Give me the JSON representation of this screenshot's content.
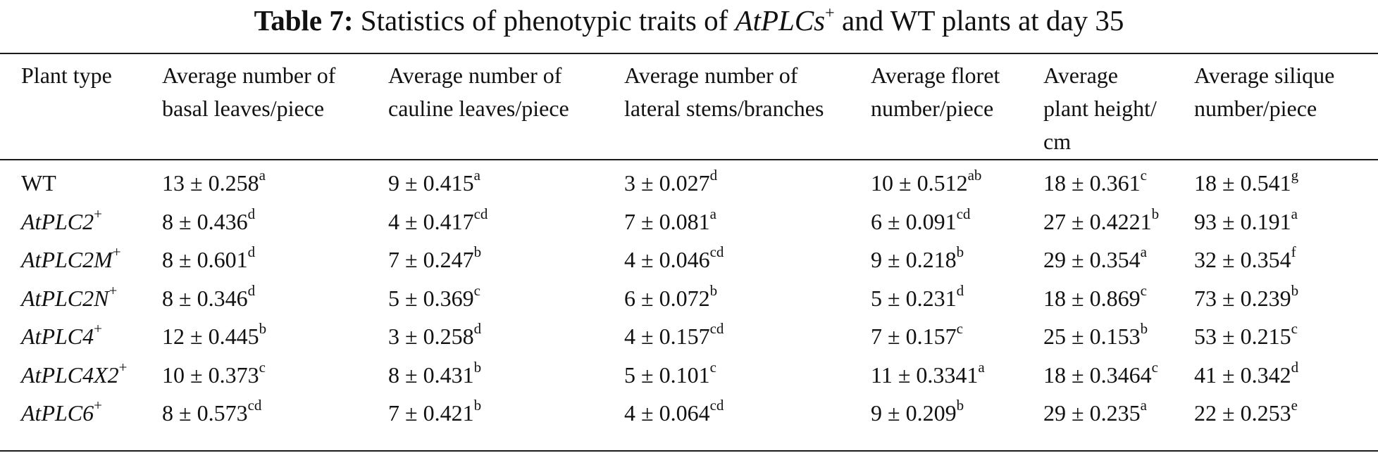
{
  "title": {
    "label": "Table 7:",
    "text": "Statistics of phenotypic traits of",
    "italic": "AtPLCs",
    "sup": "+",
    "suffix": "and WT plants at day 35"
  },
  "headers": [
    "Plant type",
    "Average number of\nbasal leaves/piece",
    "Average number of\ncauline leaves/piece",
    "Average number of\nlateral stems/branches",
    "Average floret\nnumber/piece",
    "Average\nplant height/\ncm",
    "Average silique\nnumber/piece"
  ],
  "rows": [
    {
      "plant": {
        "name": "WT",
        "sup": ""
      },
      "cells": [
        {
          "v": "13 ± 0.258",
          "s": "a"
        },
        {
          "v": "9 ± 0.415",
          "s": "a"
        },
        {
          "v": "3 ± 0.027",
          "s": "d"
        },
        {
          "v": "10 ± 0.512",
          "s": "ab"
        },
        {
          "v": "18 ± 0.361",
          "s": "c"
        },
        {
          "v": "18 ± 0.541",
          "s": "g"
        }
      ]
    },
    {
      "plant": {
        "name": "AtPLC2",
        "sup": "+"
      },
      "cells": [
        {
          "v": "8 ± 0.436",
          "s": "d"
        },
        {
          "v": "4 ± 0.417",
          "s": "cd"
        },
        {
          "v": "7 ± 0.081",
          "s": "a"
        },
        {
          "v": "6 ± 0.091",
          "s": "cd"
        },
        {
          "v": "27 ± 0.4221",
          "s": "b"
        },
        {
          "v": "93 ± 0.191",
          "s": "a"
        }
      ]
    },
    {
      "plant": {
        "name": "AtPLC2M",
        "sup": "+"
      },
      "cells": [
        {
          "v": "8 ± 0.601",
          "s": "d"
        },
        {
          "v": "7 ± 0.247",
          "s": "b"
        },
        {
          "v": "4 ± 0.046",
          "s": "cd"
        },
        {
          "v": "9 ± 0.218",
          "s": "b"
        },
        {
          "v": "29 ± 0.354",
          "s": "a"
        },
        {
          "v": "32 ± 0.354",
          "s": "f"
        }
      ]
    },
    {
      "plant": {
        "name": "AtPLC2N",
        "sup": "+"
      },
      "cells": [
        {
          "v": "8 ± 0.346",
          "s": "d"
        },
        {
          "v": "5 ± 0.369",
          "s": "c"
        },
        {
          "v": "6 ± 0.072",
          "s": "b"
        },
        {
          "v": "5 ± 0.231",
          "s": "d"
        },
        {
          "v": "18 ± 0.869",
          "s": "c"
        },
        {
          "v": "73 ± 0.239",
          "s": "b"
        }
      ]
    },
    {
      "plant": {
        "name": "AtPLC4",
        "sup": "+"
      },
      "cells": [
        {
          "v": "12 ± 0.445",
          "s": "b"
        },
        {
          "v": "3 ± 0.258",
          "s": "d"
        },
        {
          "v": "4 ± 0.157",
          "s": "cd"
        },
        {
          "v": "7 ± 0.157",
          "s": "c"
        },
        {
          "v": "25 ± 0.153",
          "s": "b"
        },
        {
          "v": "53 ± 0.215",
          "s": "c"
        }
      ]
    },
    {
      "plant": {
        "name": "AtPLC4X2",
        "sup": "+"
      },
      "cells": [
        {
          "v": "10 ± 0.373",
          "s": "c"
        },
        {
          "v": "8 ± 0.431",
          "s": "b"
        },
        {
          "v": "5 ± 0.101",
          "s": "c"
        },
        {
          "v": "11 ± 0.3341",
          "s": "a"
        },
        {
          "v": "18 ± 0.3464",
          "s": "c"
        },
        {
          "v": "41 ± 0.342",
          "s": "d"
        }
      ]
    },
    {
      "plant": {
        "name": "AtPLC6",
        "sup": "+"
      },
      "cells": [
        {
          "v": "8 ± 0.573",
          "s": "cd"
        },
        {
          "v": "7 ± 0.421",
          "s": "b"
        },
        {
          "v": "4 ± 0.064",
          "s": "cd"
        },
        {
          "v": "9 ± 0.209",
          "s": "b"
        },
        {
          "v": "29 ± 0.235",
          "s": "a"
        },
        {
          "v": "22 ± 0.253",
          "s": "e"
        }
      ]
    }
  ]
}
